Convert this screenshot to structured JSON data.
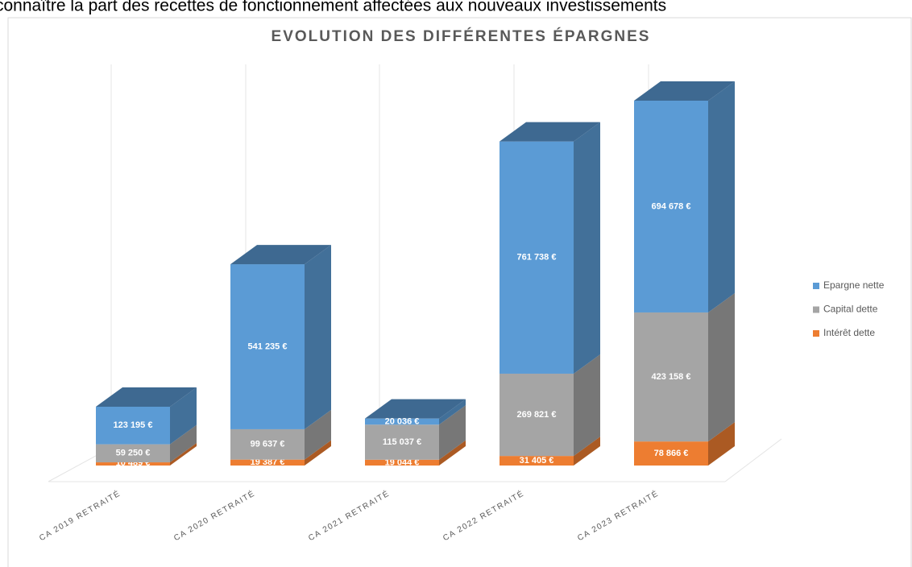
{
  "header_text": "connaître la part des recettes de fonctionnement affectées aux nouveaux investissements",
  "chart_data": {
    "type": "stacked-bar-3d",
    "title": "EVOLUTION DES DIFFÉRENTES ÉPARGNES",
    "categories": [
      "CA 2019 RETRAITÉ",
      "CA 2020 RETRAITÉ",
      "CA 2021 RETRAITÉ",
      "CA 2022 RETRAITÉ",
      "CA 2023 RETRAITÉ"
    ],
    "series": [
      {
        "name": "Intérêt dette",
        "color": "#ed7d31",
        "values": [
          10489,
          19387,
          19044,
          31405,
          78866
        ],
        "value_labels": [
          "10 489 €",
          "19 387 €",
          "19 044 €",
          "31 405 €",
          "78 866 €"
        ]
      },
      {
        "name": "Capital dette",
        "color": "#a5a5a5",
        "values": [
          59250,
          99637,
          115037,
          269821,
          423158
        ],
        "value_labels": [
          "59 250 €",
          "99 637 €",
          "115 037 €",
          "269 821 €",
          "423 158 €"
        ]
      },
      {
        "name": "Epargne nette",
        "color": "#5b9bd5",
        "values": [
          123195,
          541235,
          20036,
          761738,
          694678
        ],
        "value_labels": [
          "123 195 €",
          "541 235 €",
          "20 036 €",
          "761 738 €",
          "694 678 €"
        ]
      }
    ],
    "legend": "right"
  }
}
